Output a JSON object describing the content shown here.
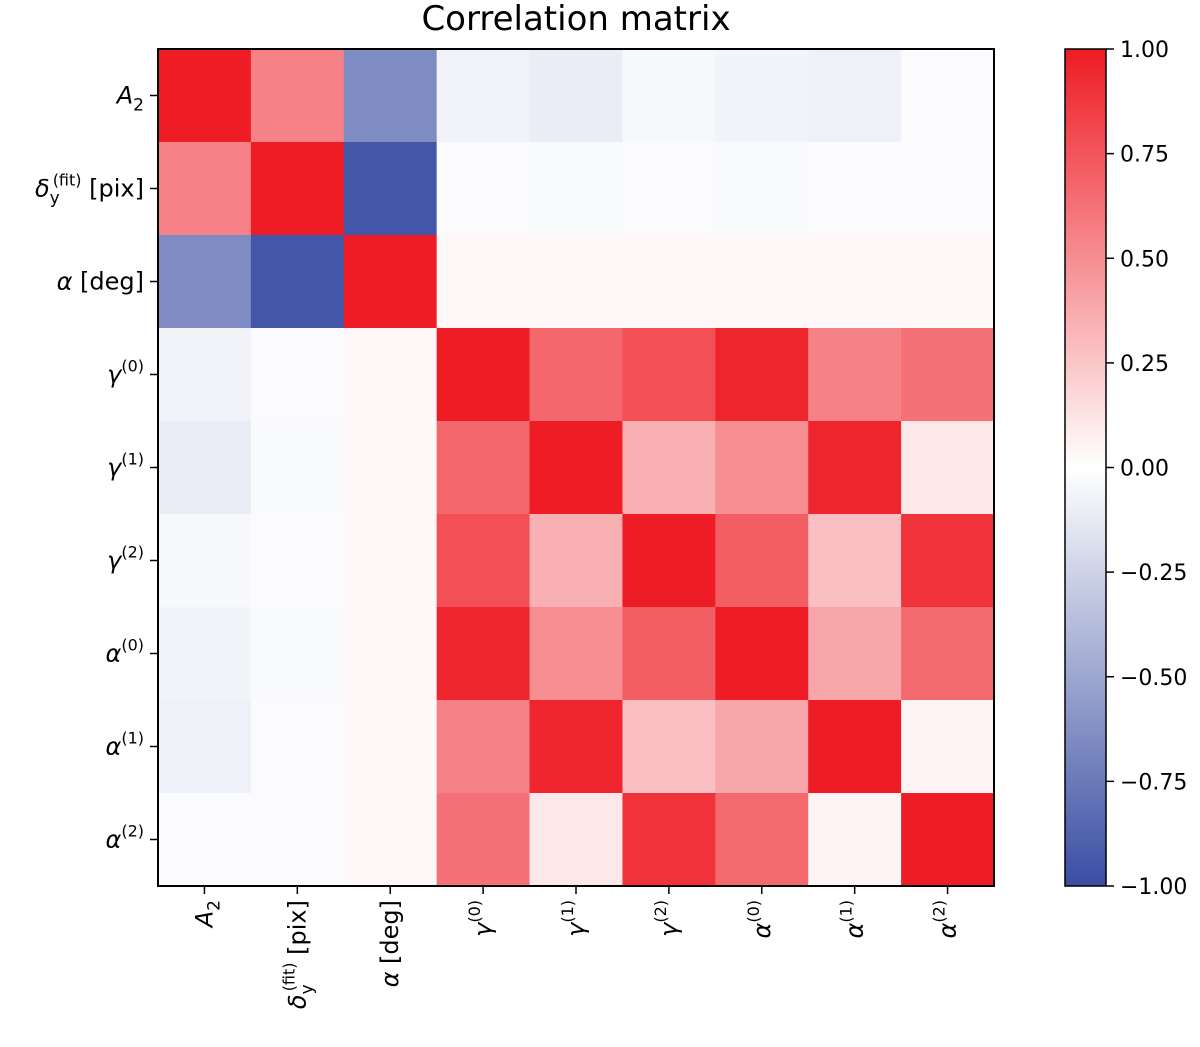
{
  "chart_data": {
    "type": "heatmap",
    "title": "Correlation matrix",
    "labels": [
      {
        "main": "A",
        "sub": "2",
        "sup": "",
        "suffix": "",
        "italic": true
      },
      {
        "main": "δ",
        "sub": "y",
        "sup": "(fit)",
        "suffix": " [pix]",
        "italic": true
      },
      {
        "main": "α",
        "sub": "",
        "sup": "",
        "suffix": " [deg]",
        "italic": true
      },
      {
        "main": "γ",
        "sub": "",
        "sup": "(0)",
        "suffix": "",
        "italic": true
      },
      {
        "main": "γ",
        "sub": "",
        "sup": "(1)",
        "suffix": "",
        "italic": true
      },
      {
        "main": "γ",
        "sub": "",
        "sup": "(2)",
        "suffix": "",
        "italic": true
      },
      {
        "main": "α",
        "sub": "",
        "sup": "(0)",
        "suffix": "",
        "italic": true
      },
      {
        "main": "α",
        "sub": "",
        "sup": "(1)",
        "suffix": "",
        "italic": true
      },
      {
        "main": "α",
        "sub": "",
        "sup": "(2)",
        "suffix": "",
        "italic": true
      }
    ],
    "values": [
      [
        1.0,
        0.55,
        -0.65,
        -0.07,
        -0.1,
        -0.04,
        -0.06,
        -0.08,
        -0.02
      ],
      [
        0.55,
        1.0,
        -0.95,
        -0.02,
        -0.03,
        -0.02,
        -0.03,
        -0.02,
        -0.02
      ],
      [
        -0.65,
        -0.95,
        1.0,
        0.03,
        0.03,
        0.03,
        0.03,
        0.03,
        0.03
      ],
      [
        -0.07,
        -0.02,
        0.03,
        1.0,
        0.67,
        0.77,
        0.96,
        0.55,
        0.62
      ],
      [
        -0.1,
        -0.03,
        0.03,
        0.67,
        1.0,
        0.35,
        0.5,
        0.96,
        0.1
      ],
      [
        -0.04,
        -0.02,
        0.03,
        0.77,
        0.35,
        1.0,
        0.71,
        0.28,
        0.9
      ],
      [
        -0.06,
        -0.03,
        0.03,
        0.96,
        0.5,
        0.71,
        1.0,
        0.39,
        0.66
      ],
      [
        -0.08,
        -0.02,
        0.03,
        0.55,
        0.96,
        0.28,
        0.39,
        1.0,
        0.05
      ],
      [
        -0.02,
        -0.02,
        0.03,
        0.62,
        0.1,
        0.9,
        0.66,
        0.05,
        1.0
      ]
    ],
    "colorbar": {
      "min": -1.0,
      "max": 1.0,
      "ticks": [
        1.0,
        0.75,
        0.5,
        0.25,
        0.0,
        -0.25,
        -0.5,
        -0.75,
        -1.0
      ],
      "tick_labels": [
        "1.00",
        "0.75",
        "0.50",
        "0.25",
        "0.00",
        "−0.25",
        "−0.50",
        "−0.75",
        "−1.00"
      ],
      "colors": {
        "low": "#3a4da3",
        "mid": "#ffffff",
        "high": "#ee1c24"
      }
    }
  }
}
